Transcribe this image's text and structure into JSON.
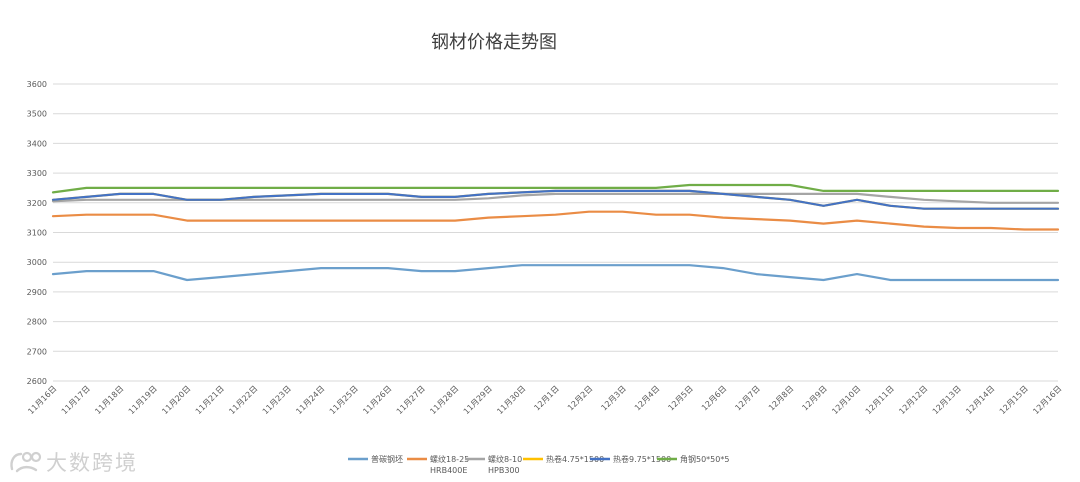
{
  "chart_data": {
    "type": "line",
    "title": "钢材价格走势图",
    "categories": [
      "11月16日",
      "11月17日",
      "11月18日",
      "11月19日",
      "11月20日",
      "11月21日",
      "11月22日",
      "11月23日",
      "11月24日",
      "11月25日",
      "11月26日",
      "11月27日",
      "11月28日",
      "11月29日",
      "11月30日",
      "12月1日",
      "12月2日",
      "12月3日",
      "12月4日",
      "12月5日",
      "12月6日",
      "12月7日",
      "12月8日",
      "12月9日",
      "12月10日",
      "12月11日",
      "12月12日",
      "12月13日",
      "12月14日",
      "12月15日",
      "12月16日"
    ],
    "ylim": [
      2600,
      3600
    ],
    "yticks": [
      2600,
      2700,
      2800,
      2900,
      3000,
      3100,
      3200,
      3300,
      3400,
      3500,
      3600
    ],
    "grid": true,
    "legend_position": "bottom",
    "series": [
      {
        "name": "普碳钢坯",
        "color": "#6b9fcc",
        "values": [
          2960,
          2970,
          2970,
          2970,
          2940,
          2950,
          2960,
          2970,
          2980,
          2980,
          2980,
          2970,
          2970,
          2980,
          2990,
          2990,
          2990,
          2990,
          2990,
          2990,
          2980,
          2960,
          2950,
          2940,
          2960,
          2940,
          2940,
          2940,
          2940,
          2940,
          2940
        ]
      },
      {
        "name": "螺纹18-25 HRB400E",
        "color": "#ea8c45",
        "values": [
          3155,
          3160,
          3160,
          3160,
          3140,
          3140,
          3140,
          3140,
          3140,
          3140,
          3140,
          3140,
          3140,
          3150,
          3155,
          3160,
          3170,
          3170,
          3160,
          3160,
          3150,
          3145,
          3140,
          3130,
          3140,
          3130,
          3120,
          3115,
          3115,
          3110,
          3110
        ]
      },
      {
        "name": "螺纹8-10 HPB300",
        "color": "#a5a5a5",
        "values": [
          3205,
          3210,
          3210,
          3210,
          3210,
          3210,
          3210,
          3210,
          3210,
          3210,
          3210,
          3210,
          3210,
          3215,
          3225,
          3230,
          3230,
          3230,
          3230,
          3230,
          3230,
          3230,
          3230,
          3230,
          3230,
          3220,
          3210,
          3205,
          3200,
          3200,
          3200
        ]
      },
      {
        "name": "热卷4.75*1500",
        "color": "#ffc000",
        "values": [
          3210,
          3220,
          3230,
          3230,
          3210,
          3210,
          3220,
          3225,
          3230,
          3230,
          3230,
          3220,
          3220,
          3230,
          3235,
          3240,
          3240,
          3240,
          3240,
          3240,
          3230,
          3220,
          3210,
          3190,
          3210,
          3190,
          3180,
          3180,
          3180,
          3180,
          3180
        ]
      },
      {
        "name": "热卷9.75*1500",
        "color": "#4472c4",
        "values": [
          3210,
          3220,
          3230,
          3230,
          3210,
          3210,
          3220,
          3225,
          3230,
          3230,
          3230,
          3220,
          3220,
          3230,
          3235,
          3240,
          3240,
          3240,
          3240,
          3240,
          3230,
          3220,
          3210,
          3190,
          3210,
          3190,
          3180,
          3180,
          3180,
          3180,
          3180
        ]
      },
      {
        "name": "角钢50*50*5",
        "color": "#70ad47",
        "values": [
          3235,
          3250,
          3250,
          3250,
          3250,
          3250,
          3250,
          3250,
          3250,
          3250,
          3250,
          3250,
          3250,
          3250,
          3250,
          3250,
          3250,
          3250,
          3250,
          3260,
          3260,
          3260,
          3260,
          3240,
          3240,
          3240,
          3240,
          3240,
          3240,
          3240,
          3240
        ]
      }
    ]
  },
  "watermark": {
    "text": "大数跨境",
    "icon": "brand-logo-icon"
  }
}
